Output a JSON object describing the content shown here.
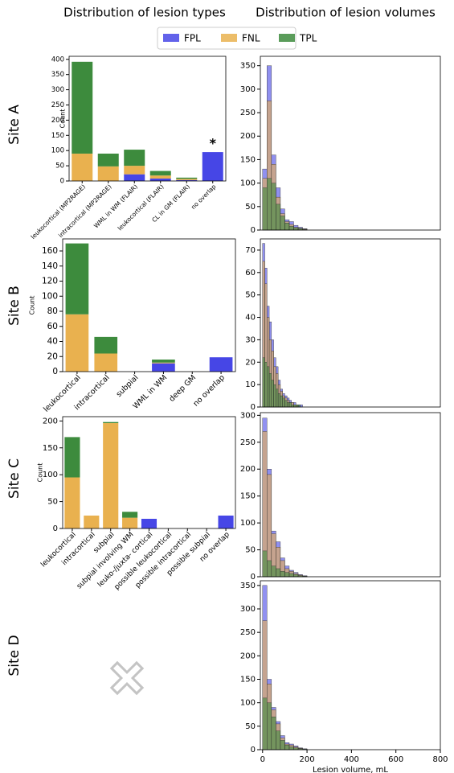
{
  "column_titles": [
    "Distribution of lesion types",
    "Distribution of lesion volumes"
  ],
  "rows": [
    "Site A",
    "Site B",
    "Site C",
    "Site D"
  ],
  "chart_data": [
    {
      "type": "bar",
      "stacked": true,
      "ylabel": "Count",
      "categories": [
        "leukocortical (MP2RAGE)",
        "intracortical (MP2RAGE)",
        "WML in WM (FLAIR)",
        "leukocortical (FLAIR)",
        "CL in GM (FLAIR)",
        "no overlap"
      ],
      "series": [
        {
          "name": "FPL",
          "color": "#4646e6",
          "values": [
            0,
            0,
            22,
            8,
            3,
            95
          ]
        },
        {
          "name": "FNL",
          "color": "#e9b14f",
          "values": [
            90,
            48,
            28,
            10,
            4,
            0
          ]
        },
        {
          "name": "TPL",
          "color": "#3d8b3d",
          "values": [
            302,
            42,
            53,
            15,
            4,
            0
          ]
        }
      ],
      "ylim": [
        0,
        410
      ],
      "yticks": [
        0,
        50,
        100,
        150,
        200,
        250,
        300,
        350,
        400
      ],
      "annotations": [
        "*"
      ]
    },
    {
      "type": "bar",
      "stacked": true,
      "ylabel": "Count",
      "categories": [
        "leukocortical",
        "intracortical",
        "subpial",
        "WML in WM",
        "deep GM",
        "no overlap"
      ],
      "series": [
        {
          "name": "FPL",
          "color": "#4646e6",
          "values": [
            0,
            0,
            0,
            11,
            0,
            19
          ]
        },
        {
          "name": "FNL",
          "color": "#e9b14f",
          "values": [
            76,
            24,
            0,
            1,
            0,
            0
          ]
        },
        {
          "name": "TPL",
          "color": "#3d8b3d",
          "values": [
            94,
            22,
            0,
            4,
            0,
            0
          ]
        }
      ],
      "ylim": [
        0,
        176
      ],
      "yticks": [
        0,
        20,
        40,
        60,
        80,
        100,
        120,
        140,
        160
      ]
    },
    {
      "type": "bar",
      "stacked": true,
      "ylabel": "Count",
      "categories": [
        "leukocortical",
        "intracortical",
        "subpial",
        "subpial involving WM",
        "leuko-/juxta- cortical",
        "possible leukocortical",
        "possible intracortical",
        "possible subpial",
        "no overlap"
      ],
      "series": [
        {
          "name": "FPL",
          "color": "#4646e6",
          "values": [
            0,
            0,
            0,
            0,
            18,
            0,
            0,
            0,
            24
          ]
        },
        {
          "name": "FNL",
          "color": "#e9b14f",
          "values": [
            95,
            24,
            196,
            20,
            0,
            0,
            0,
            0,
            0
          ]
        },
        {
          "name": "TPL",
          "color": "#3d8b3d",
          "values": [
            75,
            0,
            2,
            11,
            0,
            0,
            0,
            0,
            0
          ]
        }
      ],
      "ylim": [
        0,
        208
      ],
      "yticks": [
        0,
        50,
        100,
        150,
        200
      ]
    },
    {
      "type": "histogram",
      "bins": [
        0,
        20,
        40,
        60,
        80,
        100,
        120,
        140,
        160,
        180,
        200
      ],
      "series": [
        {
          "name": "FPL",
          "color": "#4646e6",
          "values": [
            130,
            350,
            160,
            90,
            45,
            22,
            18,
            10,
            6,
            3
          ]
        },
        {
          "name": "FNL",
          "color": "#e9b14f",
          "values": [
            110,
            275,
            140,
            70,
            35,
            18,
            12,
            6,
            4,
            2
          ]
        },
        {
          "name": "TPL",
          "color": "#3d8b3d",
          "values": [
            90,
            110,
            100,
            55,
            30,
            15,
            8,
            5,
            3,
            1
          ]
        }
      ],
      "xlim": [
        -10,
        800
      ],
      "ylim": [
        0,
        370
      ],
      "yticks": [
        0,
        50,
        100,
        150,
        200,
        250,
        300,
        350
      ]
    },
    {
      "type": "histogram",
      "bins": [
        0,
        10,
        20,
        30,
        40,
        50,
        60,
        70,
        80,
        90,
        100,
        110,
        120,
        130,
        140,
        150,
        160,
        170,
        180
      ],
      "series": [
        {
          "name": "FPL",
          "color": "#4646e6",
          "values": [
            73,
            62,
            45,
            38,
            30,
            22,
            18,
            12,
            8,
            6,
            5,
            4,
            3,
            2,
            2,
            1,
            1,
            1
          ]
        },
        {
          "name": "FNL",
          "color": "#e9b14f",
          "values": [
            65,
            55,
            40,
            30,
            25,
            18,
            15,
            10,
            7,
            5,
            4,
            3,
            2,
            2,
            1,
            1,
            0,
            0
          ]
        },
        {
          "name": "TPL",
          "color": "#3d8b3d",
          "values": [
            22,
            20,
            18,
            15,
            12,
            10,
            8,
            6,
            5,
            4,
            3,
            2,
            2,
            1,
            1,
            1,
            1,
            0
          ]
        }
      ],
      "xlim": [
        -10,
        800
      ],
      "ylim": [
        0,
        75
      ],
      "yticks": [
        0,
        10,
        20,
        30,
        40,
        50,
        60,
        70
      ]
    },
    {
      "type": "histogram",
      "bins": [
        0,
        20,
        40,
        60,
        80,
        100,
        120,
        140,
        160,
        180,
        200
      ],
      "series": [
        {
          "name": "FPL",
          "color": "#4646e6",
          "values": [
            295,
            200,
            85,
            65,
            35,
            20,
            12,
            8,
            4,
            2
          ]
        },
        {
          "name": "FNL",
          "color": "#e9b14f",
          "values": [
            270,
            190,
            80,
            55,
            30,
            15,
            10,
            6,
            3,
            1
          ]
        },
        {
          "name": "TPL",
          "color": "#3d8b3d",
          "values": [
            48,
            30,
            20,
            15,
            10,
            8,
            6,
            4,
            2,
            1
          ]
        }
      ],
      "xlim": [
        -10,
        800
      ],
      "ylim": [
        0,
        305
      ],
      "yticks": [
        0,
        50,
        100,
        150,
        200,
        250,
        300
      ]
    },
    {
      "type": "histogram",
      "bins": [
        0,
        20,
        40,
        60,
        80,
        100,
        120,
        140,
        160,
        180,
        200
      ],
      "series": [
        {
          "name": "FPL",
          "color": "#4646e6",
          "values": [
            350,
            150,
            90,
            60,
            30,
            15,
            12,
            8,
            4,
            2
          ]
        },
        {
          "name": "FNL",
          "color": "#e9b14f",
          "values": [
            275,
            140,
            85,
            55,
            25,
            12,
            10,
            6,
            3,
            1
          ]
        },
        {
          "name": "TPL",
          "color": "#3d8b3d",
          "values": [
            110,
            100,
            70,
            40,
            20,
            10,
            6,
            4,
            2,
            1
          ]
        }
      ],
      "xlim": [
        -10,
        800
      ],
      "ylim": [
        0,
        360
      ],
      "yticks": [
        0,
        50,
        100,
        150,
        200,
        250,
        300,
        350
      ],
      "xticks": [
        0,
        200,
        400,
        600,
        800
      ],
      "xlabel": "Lesion volume, mL"
    }
  ]
}
